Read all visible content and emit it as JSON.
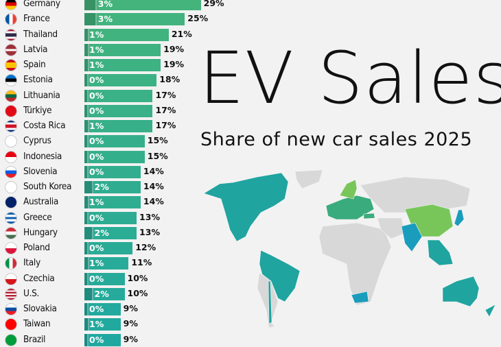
{
  "title": "EV Sales",
  "subtitle": "Share of new car sales 2025",
  "colors": {
    "bar_top": "#44b47c",
    "bar_bottom": "#20a8a0",
    "map_gray": "#d8d8d8",
    "map_teal": "#1fa4a0",
    "map_green": "#3aab7d",
    "map_light_green": "#78c65a",
    "map_blue": "#1a9dbd"
  },
  "chart_data": {
    "type": "bar",
    "orientation": "horizontal",
    "title": "EV Sales",
    "subtitle": "Share of new car sales 2025",
    "unit": "%",
    "categories": [
      "Germany",
      "France",
      "Thailand",
      "Latvia",
      "Spain",
      "Estonia",
      "Lithuania",
      "Türkiye",
      "Costa Rica",
      "Cyprus",
      "Indonesia",
      "Slovenia",
      "South Korea",
      "Australia",
      "Greece",
      "Hungary",
      "Poland",
      "Italy",
      "Czechia",
      "U.S.",
      "Slovakia",
      "Taiwan",
      "Brazil"
    ],
    "series": [
      {
        "values": [
          3,
          3,
          1,
          1,
          1,
          0,
          0,
          0,
          1,
          0,
          0,
          0,
          2,
          1,
          0,
          2,
          0,
          1,
          0,
          2,
          0,
          1,
          0
        ]
      },
      {
        "values": [
          29,
          25,
          21,
          19,
          19,
          18,
          17,
          17,
          17,
          15,
          15,
          14,
          14,
          14,
          13,
          13,
          12,
          11,
          10,
          10,
          9,
          9,
          9
        ]
      }
    ]
  }
}
